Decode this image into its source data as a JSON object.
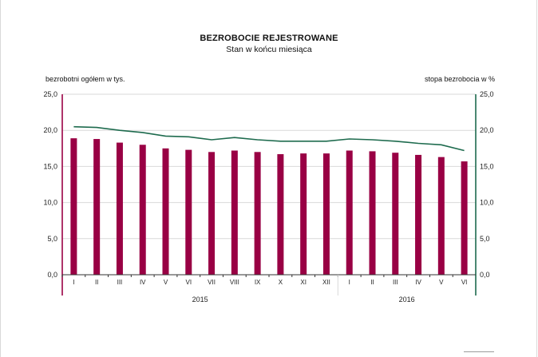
{
  "chart_data": {
    "type": "bar+line",
    "title": "BEZROBOCIE REJESTROWANE",
    "subtitle": "Stan w końcu miesiąca",
    "left_axis_label": "bezrobotni ogółem w tys.",
    "right_axis_label": "stopa bezrobocia w %",
    "categories": [
      "I",
      "II",
      "III",
      "IV",
      "V",
      "VI",
      "VII",
      "VIII",
      "IX",
      "X",
      "XI",
      "XII",
      "I",
      "II",
      "III",
      "IV",
      "V",
      "VI"
    ],
    "year_groups": [
      {
        "label": "2015",
        "count": 12
      },
      {
        "label": "2016",
        "count": 6
      }
    ],
    "left_axis": {
      "ylim": [
        0,
        25
      ],
      "ticks": [
        "0,0",
        "5,0",
        "10,0",
        "15,0",
        "20,0",
        "25,0"
      ]
    },
    "right_axis": {
      "ylim": [
        0,
        25
      ],
      "ticks": [
        "0,0",
        "5,0",
        "10,0",
        "15,0",
        "20,0",
        "25,0"
      ]
    },
    "series": [
      {
        "type": "bar",
        "axis": "left",
        "color": "#990044",
        "values": [
          18.9,
          18.8,
          18.3,
          18.0,
          17.5,
          17.3,
          17.0,
          17.2,
          17.0,
          16.7,
          16.8,
          16.8,
          17.2,
          17.1,
          16.9,
          16.6,
          16.3,
          15.7
        ]
      },
      {
        "type": "line",
        "axis": "right",
        "color": "#1e6b4e",
        "values": [
          20.5,
          20.4,
          20.0,
          19.7,
          19.2,
          19.1,
          18.7,
          19.0,
          18.7,
          18.5,
          18.5,
          18.5,
          18.8,
          18.7,
          18.5,
          18.2,
          18.0,
          17.2
        ]
      }
    ],
    "colors": {
      "left_axis": "#990044",
      "right_axis": "#1e6b4e",
      "grid": "#d9d9d9"
    },
    "grid": true
  }
}
